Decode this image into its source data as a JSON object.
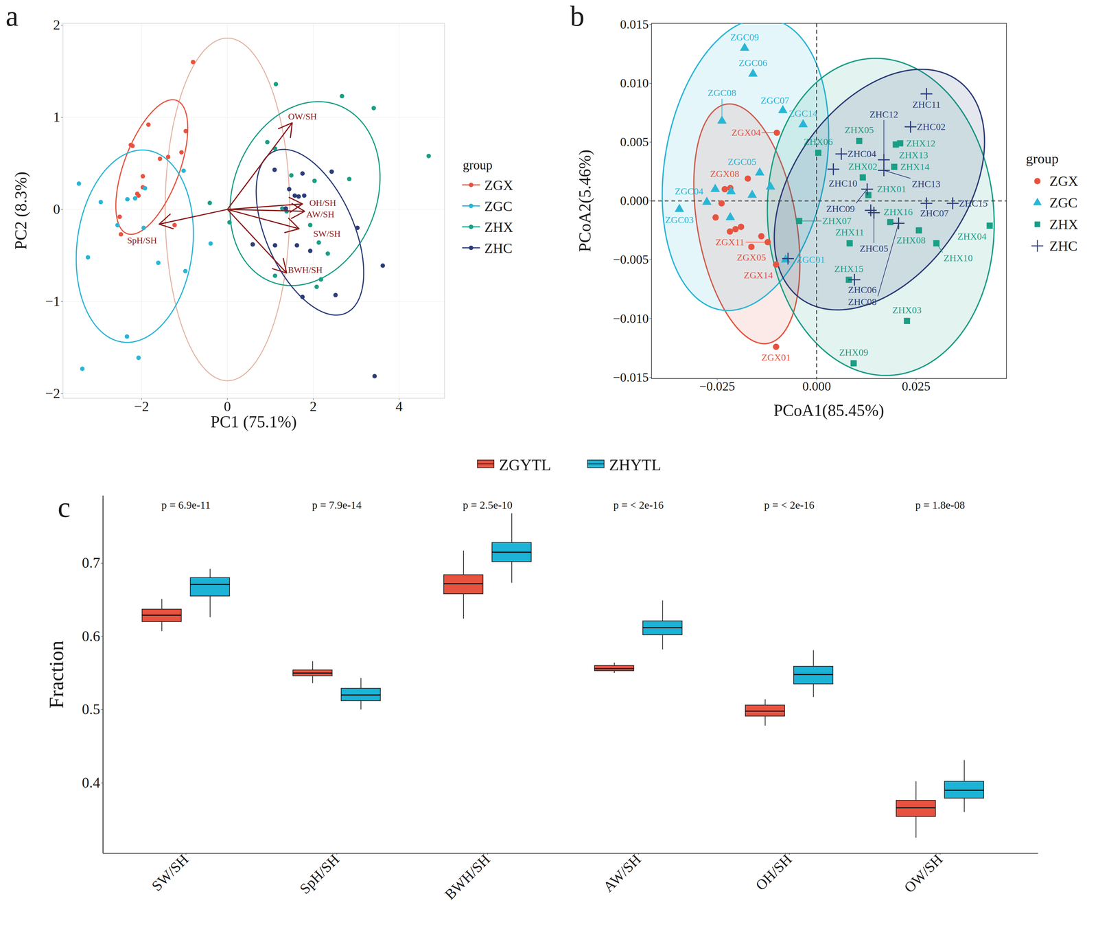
{
  "chart_data": [
    {
      "type": "scatter",
      "title": "a",
      "xlabel": "PC1 (75.1%)",
      "ylabel": "PC2 (8.3%)",
      "xlim": [
        -3.83,
        5.06
      ],
      "ylim": [
        -2.05,
        2.02
      ],
      "xticks": [
        -2,
        0,
        2,
        4
      ],
      "yticks": [
        -2,
        -1,
        0,
        1,
        2
      ],
      "grid": true,
      "legend": "right",
      "legend_title": "group",
      "series": [
        {
          "name": "ZGX",
          "color": "#E8533F",
          "marker": "circle",
          "x": [
            -0.8,
            -2.25,
            -2.21,
            -1.84,
            -0.97,
            -1.07,
            -1.38,
            -1.57,
            -1.97,
            -1.97,
            -2.1,
            -2.07,
            -2.51,
            -2.48,
            -1.23
          ],
          "y": [
            1.6,
            0.7,
            0.69,
            0.92,
            0.85,
            0.62,
            0.57,
            0.55,
            0.36,
            0.24,
            0.17,
            0.15,
            -0.08,
            -0.27,
            -0.17
          ]
        },
        {
          "name": "ZGC",
          "color": "#29B6D6",
          "marker": "circle",
          "x": [
            -3.46,
            -2.95,
            -1.92,
            -2.33,
            -2.15,
            -1.02,
            -1.95,
            -1.61,
            -0.98,
            -3.25,
            -2.34,
            -3.38,
            -2.07,
            -2.56,
            -0.39
          ],
          "y": [
            0.28,
            0.08,
            0.23,
            0.11,
            0.12,
            0.42,
            -0.2,
            -0.58,
            -0.67,
            -0.52,
            -1.38,
            -1.73,
            -1.61,
            -0.17,
            -0.37
          ]
        },
        {
          "name": "ZHX",
          "color": "#1A9E85",
          "marker": "circle",
          "x": [
            1.13,
            2.67,
            3.41,
            0.93,
            1.11,
            1.49,
            2.03,
            2.84,
            -0.41,
            0.05,
            1.28,
            1.93,
            2.13,
            2.34,
            1.11,
            2.18,
            2.08,
            4.69,
            1.38
          ],
          "y": [
            1.36,
            1.23,
            1.1,
            0.73,
            0.66,
            0.37,
            0.31,
            0.33,
            0.07,
            -0.14,
            0.01,
            -0.17,
            -0.36,
            -0.48,
            -0.72,
            -0.76,
            -0.84,
            0.58,
            -0.02
          ]
        },
        {
          "name": "ZHC",
          "color": "#2C3D78",
          "marker": "circle",
          "x": [
            1.1,
            1.75,
            1.44,
            1.57,
            1.66,
            1.79,
            2.43,
            1.36,
            0.59,
            1.11,
            1.62,
            1.93,
            3.03,
            3.62,
            2.52,
            1.75,
            3.43
          ],
          "y": [
            0.43,
            0.39,
            0.22,
            0.15,
            0.14,
            0.15,
            0.41,
            0.01,
            -0.38,
            -0.39,
            -0.39,
            -0.45,
            -0.2,
            -0.61,
            -0.93,
            -0.95,
            -1.81
          ]
        }
      ],
      "loadings_origin": [
        0,
        0
      ],
      "loadings": [
        {
          "name": "OW/SH",
          "x": 1.51,
          "y": 0.94
        },
        {
          "name": "OH/SH",
          "x": 1.75,
          "y": 0.06
        },
        {
          "name": "AW/SH",
          "x": 1.8,
          "y": -0.02
        },
        {
          "name": "SW/SH",
          "x": 1.67,
          "y": -0.21
        },
        {
          "name": "BWH/SH",
          "x": 1.38,
          "y": -0.69
        },
        {
          "name": "SpH/SH",
          "x": -1.59,
          "y": -0.16
        }
      ],
      "circle": {
        "x_radius": 1.45,
        "y_radius": 1.86
      }
    },
    {
      "type": "scatter",
      "title": "b",
      "xlabel": "PCoA1(85.45%)",
      "ylabel": "PCoA2(5.46%)",
      "xlim": [
        -0.0415,
        0.0477
      ],
      "ylim": [
        -0.0151,
        0.0151
      ],
      "xticks": [
        -0.025,
        {
          "value": 0,
          "label": "0.000"
        },
        0.025
      ],
      "yticks": [
        -0.015,
        {
          "value": -0.01,
          "label": "−0.010"
        },
        -0.005,
        {
          "value": 0,
          "label": "0.000"
        },
        0.005,
        {
          "value": 0.01,
          "label": "0.010"
        },
        0.015
      ],
      "grid": false,
      "legend": "right",
      "legend_title": "group",
      "reference_lines": {
        "x": 0,
        "y": 0,
        "line_style": "dashed"
      },
      "series": [
        {
          "name": "ZGX",
          "color": "#E8533F",
          "marker": "circle",
          "labels": [
            "ZGX04",
            "ZGX08",
            "ZGX05",
            "ZGX11",
            "ZGX14",
            "ZGX01",
            null,
            null,
            null,
            null,
            null,
            null,
            null,
            null
          ],
          "x": [
            -0.01,
            -0.0231,
            -0.0164,
            -0.0123,
            -0.0102,
            -0.0102,
            -0.0239,
            -0.0254,
            -0.0218,
            -0.0204,
            -0.019,
            -0.0173,
            -0.0217,
            -0.0139
          ],
          "y": [
            0.0058,
            0.001,
            -0.0039,
            -0.0035,
            -0.0054,
            -0.0124,
            -0.0002,
            -0.0014,
            -0.0026,
            -0.0024,
            -0.0022,
            0.0019,
            0.0011,
            -0.003
          ]
        },
        {
          "name": "ZGC",
          "color": "#29B6D6",
          "marker": "triangle",
          "labels": [
            "ZGC09",
            "ZGC06",
            "ZGC08",
            "ZGC07",
            "ZGC14",
            "ZGC05",
            "ZGC04",
            "ZGC03",
            "ZGC01",
            null,
            null,
            null,
            null,
            null
          ],
          "x": [
            -0.0181,
            -0.016,
            -0.0238,
            -0.0085,
            -0.0034,
            -0.0143,
            -0.0276,
            -0.0345,
            -0.0078,
            -0.0255,
            -0.0215,
            -0.0217,
            -0.0116,
            -0.0162
          ],
          "y": [
            0.013,
            0.0108,
            0.0068,
            0.0077,
            0.0065,
            0.0024,
            -0.0001,
            -0.0007,
            -0.005,
            0.001,
            0.0008,
            -0.0014,
            0.0012,
            0.0005
          ]
        },
        {
          "name": "ZHX",
          "color": "#1A9E85",
          "marker": "square",
          "labels": [
            "ZHX05",
            "ZHX06",
            "ZHX12",
            "ZHX13",
            "ZHX14",
            "ZHX02",
            "ZHX01",
            "ZHX07",
            "ZHX16",
            "ZHX08",
            "ZHX11",
            "ZHX10",
            "ZHX04",
            "ZHX15",
            "ZHX03",
            "ZHX09"
          ],
          "x": [
            0.0107,
            0.0004,
            0.021,
            0.0199,
            0.0195,
            0.0116,
            0.013,
            -0.0044,
            0.0185,
            0.0257,
            0.0083,
            0.0301,
            0.0435,
            0.0081,
            0.0227,
            0.0093
          ],
          "y": [
            0.0051,
            0.0041,
            0.0049,
            0.0048,
            0.0029,
            0.002,
            0.0005,
            -0.0017,
            -0.0018,
            -0.0025,
            -0.0036,
            -0.0036,
            -0.0021,
            -0.0067,
            -0.0102,
            -0.0138
          ]
        },
        {
          "name": "ZHC",
          "color": "#2C3D78",
          "marker": "plus",
          "labels": [
            "ZHC11",
            "ZHC02",
            "ZHC12",
            "ZHC04",
            "ZHC10",
            "ZHC13",
            "ZHC09",
            "ZHC07",
            "ZHC15",
            "ZHC05",
            "ZHC08",
            "ZHC06",
            null,
            null
          ],
          "x": [
            0.0276,
            0.0236,
            0.0169,
            0.0062,
            0.0042,
            0.0169,
            0.0127,
            0.0276,
            0.0342,
            0.0144,
            0.0206,
            0.0095,
            0.0136,
            -0.0072
          ],
          "y": [
            0.0091,
            0.0063,
            0.0035,
            0.004,
            0.0027,
            0.0026,
            0.001,
            -0.0002,
            -0.0002,
            -0.001,
            -0.0019,
            -0.0067,
            -0.0008,
            -0.0049
          ]
        }
      ]
    },
    {
      "type": "box",
      "title": "c",
      "ylabel": "Fraction",
      "categories": [
        "SW/SH",
        "SpH/SH",
        "BWH/SH",
        "AW/SH",
        "OH/SH",
        "OW/SH"
      ],
      "annotations": [
        "p = 6.9e-11",
        "p = 7.9e-14",
        "p = 2.5e-10",
        "p = < 2e-16",
        "p = < 2e-16",
        "p = 1.8e-08"
      ],
      "ylim": [
        0.304,
        0.792
      ],
      "yticks": [
        0.4,
        0.5,
        0.6,
        0.7
      ],
      "grid": false,
      "legend": "top",
      "series": [
        {
          "name": "ZGYTL",
          "color": "#E8533F",
          "whisker_low": [
            0.607,
            0.536,
            0.624,
            0.55,
            0.478,
            0.325
          ],
          "q1": [
            0.62,
            0.546,
            0.658,
            0.553,
            0.491,
            0.354
          ],
          "median": [
            0.629,
            0.55,
            0.672,
            0.556,
            0.498,
            0.366
          ],
          "q3": [
            0.637,
            0.554,
            0.684,
            0.56,
            0.506,
            0.376
          ],
          "whisker_high": [
            0.651,
            0.566,
            0.717,
            0.564,
            0.514,
            0.402
          ]
        },
        {
          "name": "ZHYTL",
          "color": "#1CB3D6",
          "whisker_low": [
            0.626,
            0.5,
            0.673,
            0.582,
            0.517,
            0.36
          ],
          "q1": [
            0.655,
            0.512,
            0.702,
            0.602,
            0.535,
            0.379
          ],
          "median": [
            0.671,
            0.52,
            0.715,
            0.612,
            0.548,
            0.39
          ],
          "q3": [
            0.68,
            0.529,
            0.728,
            0.621,
            0.559,
            0.402
          ],
          "whisker_high": [
            0.692,
            0.543,
            0.768,
            0.649,
            0.581,
            0.431
          ]
        }
      ]
    }
  ]
}
